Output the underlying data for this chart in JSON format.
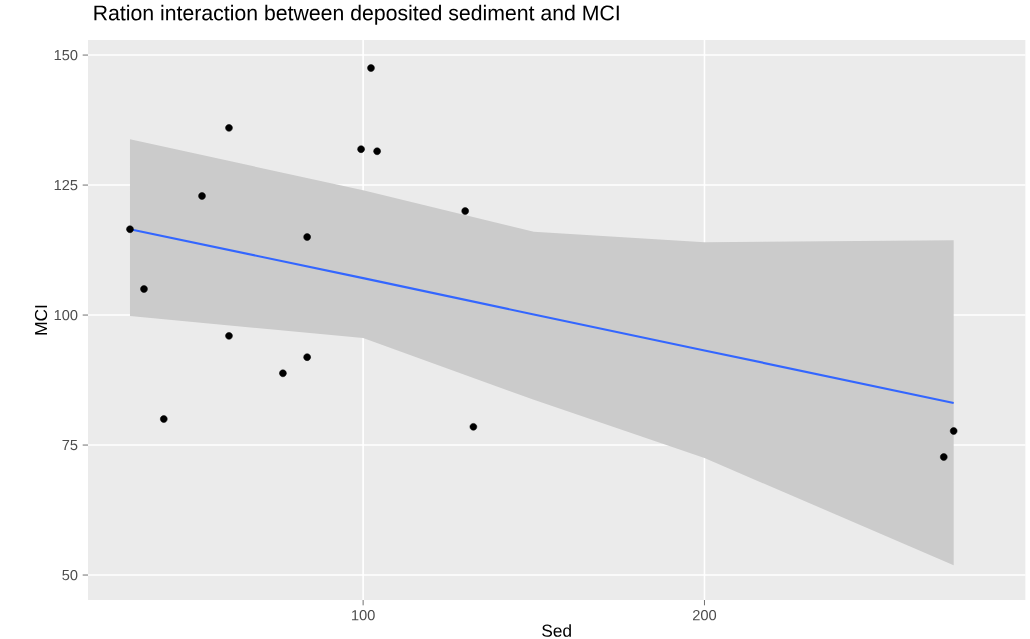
{
  "chart_data": {
    "type": "scatter",
    "title": "Ration interaction between deposited sediment and MCI",
    "xlabel": "Sed",
    "ylabel": "MCI",
    "xlim": [
      19.4,
      294
    ],
    "ylim": [
      45.2,
      152.9
    ],
    "xticks": [
      100,
      200
    ],
    "yticks": [
      50,
      75,
      100,
      125,
      150
    ],
    "grid": true,
    "series": [
      {
        "marker": "circle",
        "color": "#000000",
        "x": [
          31.7,
          35.8,
          41.6,
          52.8,
          60.7,
          60.7,
          76.5,
          83.6,
          83.6,
          99.4,
          102.3,
          104.1,
          129.9,
          132.3,
          270.1,
          273
        ],
        "values": [
          116.5,
          105,
          80,
          122.9,
          136,
          96,
          88.8,
          115,
          91.9,
          131.9,
          147.5,
          131.5,
          120,
          78.5,
          72.7,
          77.7
        ]
      },
      {
        "type": "line",
        "marker": "none",
        "color": "#3366ff",
        "x": [
          31.7,
          100,
          150,
          200,
          273
        ],
        "values": [
          116.5,
          107.1,
          100.1,
          93.2,
          83.1
        ],
        "lower": [
          99.8,
          95.6,
          83.7,
          72.5,
          51.9
        ],
        "upper": [
          133.8,
          124,
          116,
          114,
          114.4
        ]
      }
    ]
  }
}
